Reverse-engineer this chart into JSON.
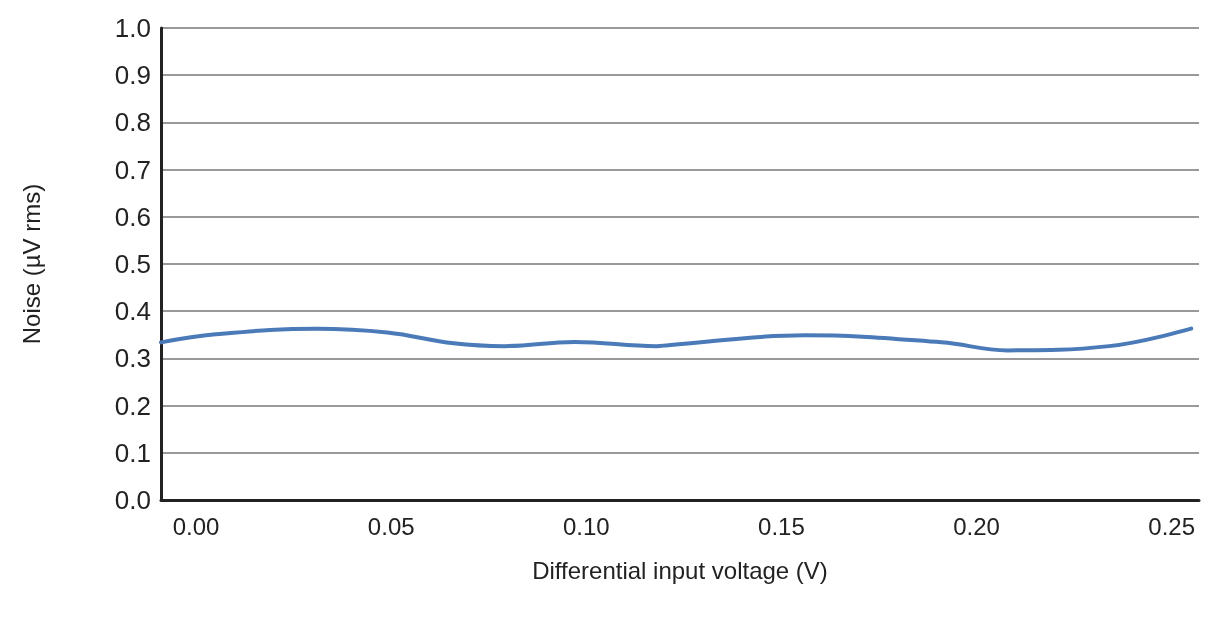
{
  "chart_data": {
    "type": "line",
    "xlabel": "Differential input voltage (V)",
    "ylabel": "Noise (µV rms)",
    "x": [
      -0.009,
      0.005,
      0.031,
      0.049,
      0.066,
      0.079,
      0.097,
      0.118,
      0.121,
      0.156,
      0.191,
      0.208,
      0.234,
      0.255
    ],
    "series": [
      {
        "color": "#4a7ab8",
        "values": [
          0.334,
          0.351,
          0.363,
          0.355,
          0.332,
          0.326,
          0.335,
          0.326,
          0.328,
          0.349,
          0.334,
          0.317,
          0.326,
          0.363
        ]
      }
    ],
    "xlim": [
      -0.009,
      0.257
    ],
    "ylim": [
      0,
      1
    ],
    "xticks": [
      {
        "value": 0,
        "label": "0.00"
      },
      0.05,
      {
        "value": 0.1,
        "label": "0.10"
      },
      0.15,
      {
        "value": 0.2,
        "label": "0.20"
      },
      0.25
    ],
    "yticks": [
      {
        "value": 0,
        "label": "0.0"
      },
      0.1,
      0.2,
      0.3,
      0.4,
      0.5,
      0.6,
      0.7,
      0.8,
      0.9,
      {
        "value": 1,
        "label": "1.0"
      }
    ],
    "grid": "y",
    "marker": "none",
    "line_style": "solid"
  }
}
